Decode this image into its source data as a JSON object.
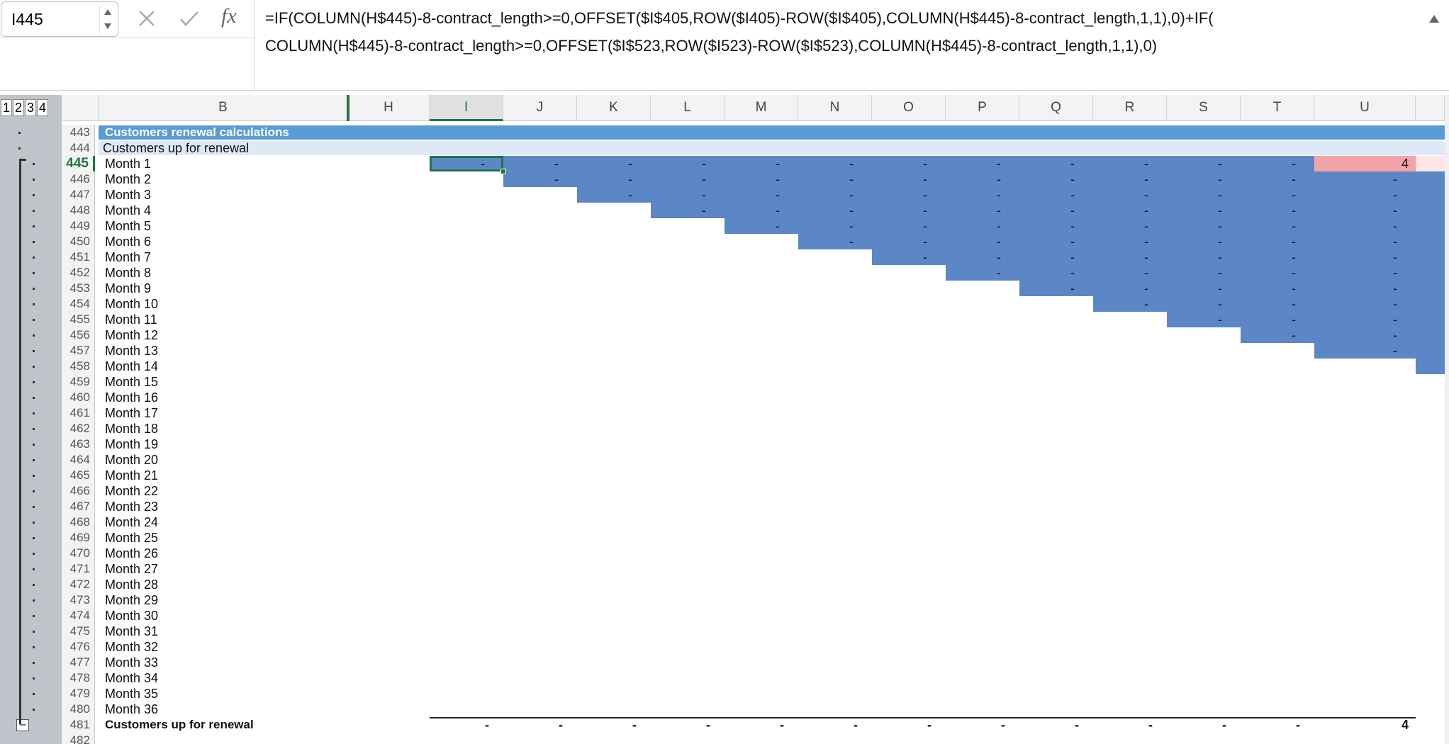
{
  "name_box": "I445",
  "formula_bar": {
    "fx": "fx",
    "lines": [
      "=IF(COLUMN(H$445)-8-contract_length>=0,OFFSET($I$405,ROW($I405)-ROW($I$405),COLUMN(H$445)-8-contract_length,1,1),0)+IF(",
      "COLUMN(H$445)-8-contract_length>=0,OFFSET($I$523,ROW($I523)-ROW($I$523),COLUMN(H$445)-8-contract_length,1,1),0)"
    ]
  },
  "outline_levels": [
    1,
    2,
    3,
    4
  ],
  "columns": [
    "B",
    "H",
    "I",
    "J",
    "K",
    "L",
    "M",
    "N",
    "O",
    "P",
    "Q",
    "R",
    "S",
    "T",
    "U"
  ],
  "rows": [
    {
      "number": 443,
      "label": "Customers renewal calculations"
    },
    {
      "number": 444,
      "label": "Customers up for renewal"
    },
    {
      "number": 445,
      "label": "Month 1",
      "cells": [
        "-",
        "-",
        "-",
        "-",
        "-",
        "-",
        "-",
        "-",
        "-",
        "-",
        "-",
        "-",
        "4"
      ]
    },
    {
      "number": 446,
      "label": "Month 2",
      "cells": [
        null,
        "-",
        "-",
        "-",
        "-",
        "-",
        "-",
        "-",
        "-",
        "-",
        "-",
        "-",
        "-"
      ]
    },
    {
      "number": 447,
      "label": "Month 3",
      "cells": [
        null,
        null,
        "-",
        "-",
        "-",
        "-",
        "-",
        "-",
        "-",
        "-",
        "-",
        "-",
        "-"
      ]
    },
    {
      "number": 448,
      "label": "Month 4",
      "cells": [
        null,
        null,
        null,
        "-",
        "-",
        "-",
        "-",
        "-",
        "-",
        "-",
        "-",
        "-",
        "-"
      ]
    },
    {
      "number": 449,
      "label": "Month 5",
      "cells": [
        null,
        null,
        null,
        null,
        "-",
        "-",
        "-",
        "-",
        "-",
        "-",
        "-",
        "-",
        "-"
      ]
    },
    {
      "number": 450,
      "label": "Month 6",
      "cells": [
        null,
        null,
        null,
        null,
        null,
        "-",
        "-",
        "-",
        "-",
        "-",
        "-",
        "-",
        "-"
      ]
    },
    {
      "number": 451,
      "label": "Month 7",
      "cells": [
        null,
        null,
        null,
        null,
        null,
        null,
        "-",
        "-",
        "-",
        "-",
        "-",
        "-",
        "-"
      ]
    },
    {
      "number": 452,
      "label": "Month 8",
      "cells": [
        null,
        null,
        null,
        null,
        null,
        null,
        null,
        "-",
        "-",
        "-",
        "-",
        "-",
        "-"
      ]
    },
    {
      "number": 453,
      "label": "Month 9",
      "cells": [
        null,
        null,
        null,
        null,
        null,
        null,
        null,
        null,
        "-",
        "-",
        "-",
        "-",
        "-"
      ]
    },
    {
      "number": 454,
      "label": "Month 10",
      "cells": [
        null,
        null,
        null,
        null,
        null,
        null,
        null,
        null,
        null,
        "-",
        "-",
        "-",
        "-"
      ]
    },
    {
      "number": 455,
      "label": "Month 11",
      "cells": [
        null,
        null,
        null,
        null,
        null,
        null,
        null,
        null,
        null,
        null,
        "-",
        "-",
        "-"
      ]
    },
    {
      "number": 456,
      "label": "Month 12",
      "cells": [
        null,
        null,
        null,
        null,
        null,
        null,
        null,
        null,
        null,
        null,
        null,
        "-",
        "-"
      ]
    },
    {
      "number": 457,
      "label": "Month 13",
      "cells": [
        null,
        null,
        null,
        null,
        null,
        null,
        null,
        null,
        null,
        null,
        null,
        null,
        "-"
      ]
    },
    {
      "number": 458,
      "label": "Month 14"
    },
    {
      "number": 459,
      "label": "Month 15"
    },
    {
      "number": 460,
      "label": "Month 16"
    },
    {
      "number": 461,
      "label": "Month 17"
    },
    {
      "number": 462,
      "label": "Month 18"
    },
    {
      "number": 463,
      "label": "Month 19"
    },
    {
      "number": 464,
      "label": "Month 20"
    },
    {
      "number": 465,
      "label": "Month 21"
    },
    {
      "number": 466,
      "label": "Month 22"
    },
    {
      "number": 467,
      "label": "Month 23"
    },
    {
      "number": 468,
      "label": "Month 24"
    },
    {
      "number": 469,
      "label": "Month 25"
    },
    {
      "number": 470,
      "label": "Month 26"
    },
    {
      "number": 471,
      "label": "Month 27"
    },
    {
      "number": 472,
      "label": "Month 28"
    },
    {
      "number": 473,
      "label": "Month 29"
    },
    {
      "number": 474,
      "label": "Month 30"
    },
    {
      "number": 475,
      "label": "Month 31"
    },
    {
      "number": 476,
      "label": "Month 32"
    },
    {
      "number": 477,
      "label": "Month 33"
    },
    {
      "number": 478,
      "label": "Month 34"
    },
    {
      "number": 479,
      "label": "Month 35"
    },
    {
      "number": 480,
      "label": "Month 36"
    },
    {
      "number": 481,
      "label": "Customers up for renewal",
      "cells": [
        "-",
        "-",
        "-",
        "-",
        "-",
        "-",
        "-",
        "-",
        "-",
        "-",
        "-",
        "-",
        "4"
      ]
    },
    {
      "number": 482
    }
  ]
}
